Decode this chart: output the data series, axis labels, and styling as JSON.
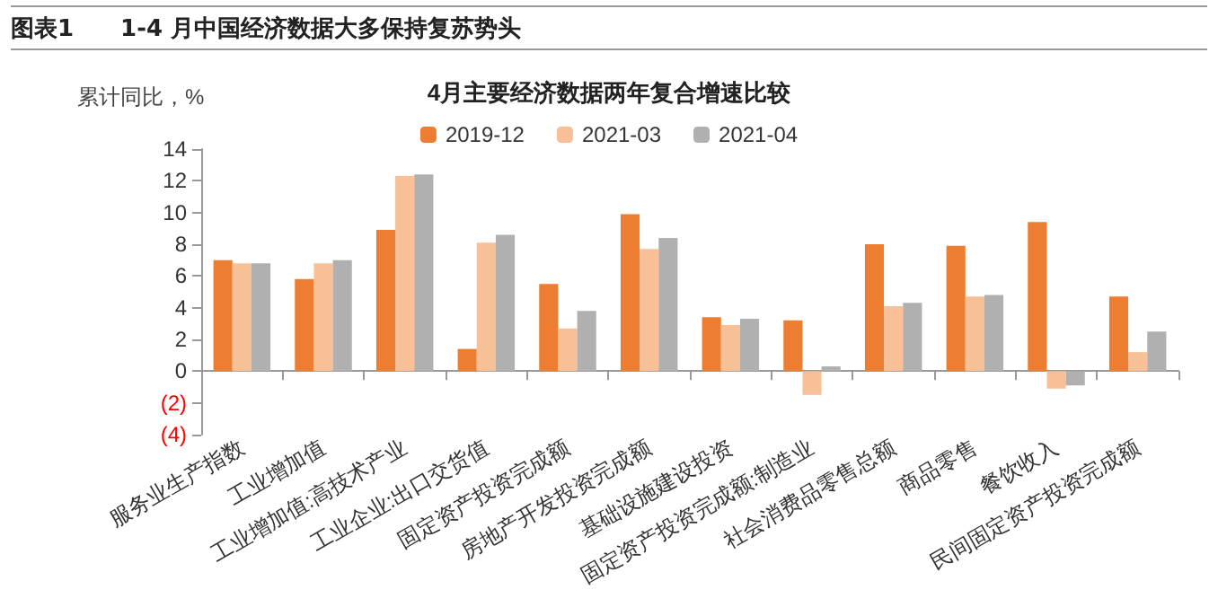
{
  "chart_data": {
    "type": "bar",
    "title": "图表1　　1-4 月中国经济数据大多保持复苏势头",
    "subtitle": "4月主要经济数据两年复合增速比较",
    "ylabel": "累计同比，%",
    "categories": [
      "服务业生产指数",
      "工业增加值",
      "工业增加值:高技术产业",
      "工业企业:出口交货值",
      "固定资产投资完成额",
      "房地产开发投资完成额",
      "基础设施建设投资",
      "固定资产投资完成额:制造业",
      "社会消费品零售总额",
      "商品零售",
      "餐饮收入",
      "民间固定资产投资完成额"
    ],
    "series": [
      {
        "name": "2019-12",
        "color": "#ed7d31",
        "values": [
          7.0,
          5.8,
          8.9,
          1.4,
          5.5,
          9.9,
          3.4,
          3.2,
          8.0,
          7.9,
          9.4,
          4.7
        ]
      },
      {
        "name": "2021-03",
        "color": "#f8c097",
        "values": [
          6.8,
          6.8,
          12.3,
          8.1,
          2.7,
          7.7,
          2.9,
          -1.5,
          4.1,
          4.7,
          -1.1,
          1.2
        ]
      },
      {
        "name": "2021-04",
        "color": "#b0b0b0",
        "values": [
          6.8,
          7.0,
          12.4,
          8.6,
          3.8,
          8.4,
          3.3,
          0.3,
          4.3,
          4.8,
          -0.9,
          2.5
        ]
      }
    ],
    "ylim": [
      -4,
      14
    ],
    "yticks": [
      {
        "value": -4,
        "label": "(4)"
      },
      {
        "value": -2,
        "label": "(2)"
      },
      0,
      2,
      4,
      6,
      8,
      10,
      12,
      14
    ],
    "legend": "top"
  }
}
